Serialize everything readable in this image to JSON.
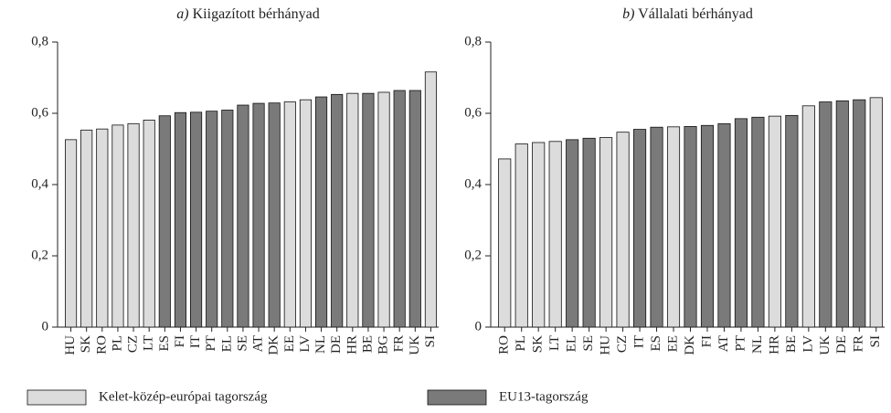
{
  "legend": {
    "items": [
      {
        "name": "Kelet-közép-európai tagország",
        "color": "#dcdcdc"
      },
      {
        "name": "EU13-tagország",
        "color": "#7a7a7a"
      }
    ]
  },
  "chart_data": [
    {
      "type": "bar",
      "label": "a)",
      "title": "Kiigazított bérhányad",
      "categories": [
        "HU",
        "SK",
        "RO",
        "PL",
        "CZ",
        "LT",
        "ES",
        "FI",
        "IT",
        "PT",
        "EL",
        "SE",
        "AT",
        "DK",
        "EE",
        "LV",
        "NL",
        "DE",
        "HR",
        "BE",
        "BG",
        "FR",
        "UK",
        "SI"
      ],
      "values": [
        0.526,
        0.553,
        0.556,
        0.567,
        0.571,
        0.581,
        0.593,
        0.602,
        0.603,
        0.606,
        0.609,
        0.623,
        0.628,
        0.629,
        0.632,
        0.638,
        0.646,
        0.653,
        0.656,
        0.656,
        0.659,
        0.664,
        0.664,
        0.716
      ],
      "groups": [
        0,
        0,
        0,
        0,
        0,
        0,
        1,
        1,
        1,
        1,
        1,
        1,
        1,
        1,
        0,
        0,
        1,
        1,
        0,
        1,
        0,
        1,
        1,
        0
      ],
      "ylim": [
        0,
        0.8
      ],
      "yticks": [
        0,
        {
          "value": 0.2,
          "label": "0,2"
        },
        {
          "value": 0.4,
          "label": "0,4"
        },
        {
          "value": 0.6,
          "label": "0,6"
        },
        {
          "value": 0.8,
          "label": "0,8"
        }
      ]
    },
    {
      "type": "bar",
      "label": "b)",
      "title": "Vállalati bérhányad",
      "categories": [
        "RO",
        "PL",
        "SK",
        "LT",
        "EL",
        "SE",
        "HU",
        "CZ",
        "IT",
        "ES",
        "EE",
        "DK",
        "FI",
        "AT",
        "PT",
        "NL",
        "HR",
        "BE",
        "LV",
        "UK",
        "DE",
        "FR",
        "SI"
      ],
      "values": [
        0.472,
        0.514,
        0.518,
        0.521,
        0.526,
        0.53,
        0.532,
        0.547,
        0.555,
        0.561,
        0.562,
        0.563,
        0.566,
        0.571,
        0.585,
        0.589,
        0.592,
        0.594,
        0.621,
        0.632,
        0.635,
        0.638,
        0.644
      ],
      "groups": [
        0,
        0,
        0,
        0,
        1,
        1,
        0,
        0,
        1,
        1,
        0,
        1,
        1,
        1,
        1,
        1,
        0,
        1,
        0,
        1,
        1,
        1,
        0
      ],
      "ylim": [
        0,
        0.8
      ],
      "yticks": [
        0,
        {
          "value": 0.2,
          "label": "0,2"
        },
        {
          "value": 0.4,
          "label": "0,4"
        },
        {
          "value": 0.6,
          "label": "0,6"
        },
        {
          "value": 0.8,
          "label": "0,8"
        }
      ]
    }
  ]
}
